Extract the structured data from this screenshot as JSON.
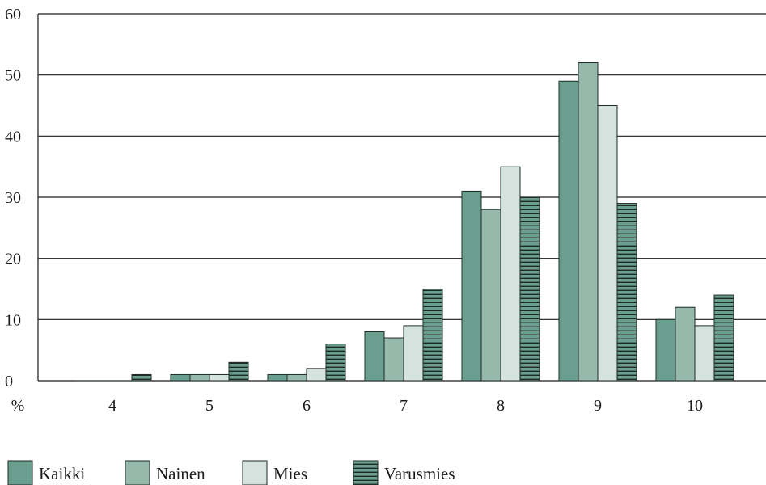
{
  "chart_data": {
    "type": "bar",
    "categories": [
      "4",
      "5",
      "6",
      "7",
      "8",
      "9",
      "10"
    ],
    "series": [
      {
        "name": "Kaikki",
        "color": "#6a9f90",
        "pattern": "solid",
        "values": [
          0,
          1,
          1,
          8,
          31,
          49,
          10
        ]
      },
      {
        "name": "Nainen",
        "color": "#95baac",
        "pattern": "solid",
        "values": [
          0,
          1,
          1,
          7,
          28,
          52,
          12
        ]
      },
      {
        "name": "Mies",
        "color": "#d4e3dd",
        "pattern": "solid",
        "values": [
          0,
          1,
          2,
          9,
          35,
          45,
          9
        ]
      },
      {
        "name": "Varusmies",
        "color": "#6a9f90",
        "pattern": "horizontal-stripes",
        "values": [
          1,
          3,
          6,
          15,
          30,
          29,
          14
        ]
      }
    ],
    "ylabel": "%",
    "ylim": [
      0,
      60
    ],
    "yticks": [
      0,
      10,
      20,
      30,
      40,
      50,
      60
    ],
    "grid": true,
    "legend_position": "bottom-left"
  }
}
